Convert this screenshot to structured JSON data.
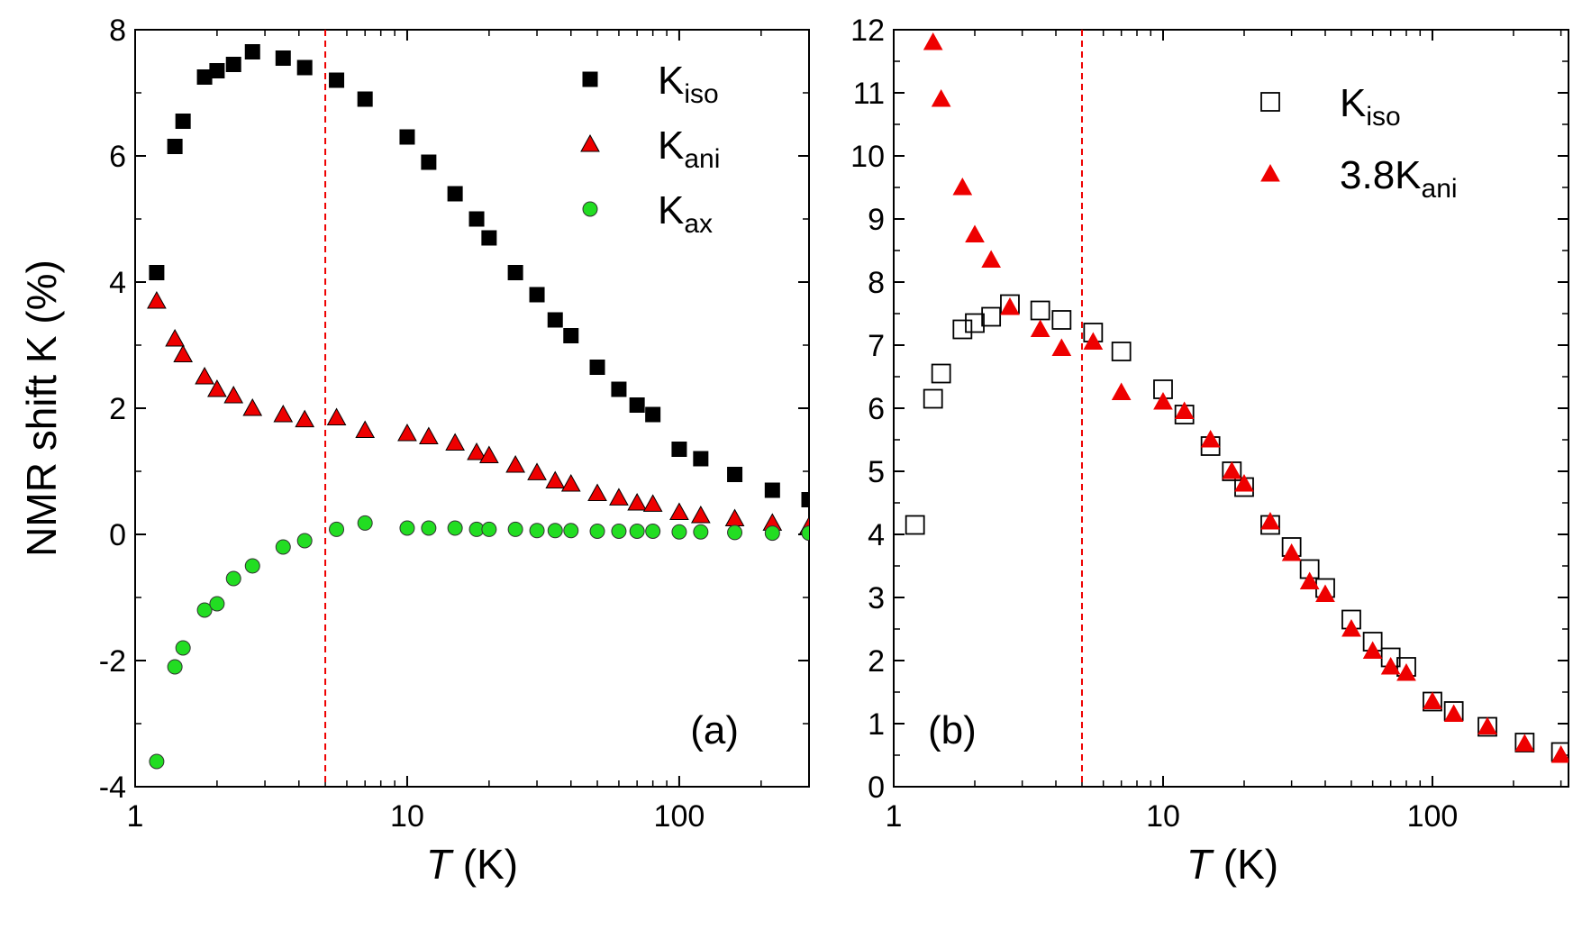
{
  "chart_data": [
    {
      "type": "scatter",
      "panel_label": "(a)",
      "ylabel": "NMR shift K (%)",
      "xlabel_italic": "T",
      "xlabel_rest": " (K)",
      "xscale": "log",
      "xlim": [
        1,
        300
      ],
      "ylim": [
        -4,
        8
      ],
      "yticks": [
        -4,
        -2,
        0,
        2,
        4,
        6,
        8
      ],
      "ytick_labels": [
        "-4",
        "-2",
        "0",
        "2",
        "4",
        "6",
        "8"
      ],
      "xticks": [
        1,
        10,
        100
      ],
      "xtick_labels": [
        "1",
        "10",
        "100"
      ],
      "reference_line_x": 5,
      "legend_position": "top-right",
      "series": [
        {
          "name": "K_iso",
          "label_main": "K",
          "label_sub": "iso",
          "marker": "square",
          "fill": "#000000",
          "stroke": "#000000",
          "points": [
            [
              1.2,
              4.15
            ],
            [
              1.4,
              6.15
            ],
            [
              1.5,
              6.55
            ],
            [
              1.8,
              7.25
            ],
            [
              2.0,
              7.35
            ],
            [
              2.3,
              7.45
            ],
            [
              2.7,
              7.65
            ],
            [
              3.5,
              7.55
            ],
            [
              4.2,
              7.4
            ],
            [
              5.5,
              7.2
            ],
            [
              7.0,
              6.9
            ],
            [
              10,
              6.3
            ],
            [
              12,
              5.9
            ],
            [
              15,
              5.4
            ],
            [
              18,
              5.0
            ],
            [
              20,
              4.7
            ],
            [
              25,
              4.15
            ],
            [
              30,
              3.8
            ],
            [
              35,
              3.4
            ],
            [
              40,
              3.15
            ],
            [
              50,
              2.65
            ],
            [
              60,
              2.3
            ],
            [
              70,
              2.05
            ],
            [
              80,
              1.9
            ],
            [
              100,
              1.35
            ],
            [
              120,
              1.2
            ],
            [
              160,
              0.95
            ],
            [
              220,
              0.7
            ],
            [
              300,
              0.55
            ]
          ]
        },
        {
          "name": "K_ani",
          "label_main": "K",
          "label_sub": "ani",
          "marker": "triangle",
          "fill": "#ee0000",
          "stroke": "#000000",
          "points": [
            [
              1.2,
              3.7
            ],
            [
              1.4,
              3.1
            ],
            [
              1.5,
              2.85
            ],
            [
              1.8,
              2.5
            ],
            [
              2.0,
              2.3
            ],
            [
              2.3,
              2.2
            ],
            [
              2.7,
              2.0
            ],
            [
              3.5,
              1.9
            ],
            [
              4.2,
              1.82
            ],
            [
              5.5,
              1.85
            ],
            [
              7.0,
              1.65
            ],
            [
              10,
              1.6
            ],
            [
              12,
              1.55
            ],
            [
              15,
              1.45
            ],
            [
              18,
              1.3
            ],
            [
              20,
              1.25
            ],
            [
              25,
              1.1
            ],
            [
              30,
              0.98
            ],
            [
              35,
              0.85
            ],
            [
              40,
              0.8
            ],
            [
              50,
              0.65
            ],
            [
              60,
              0.58
            ],
            [
              70,
              0.5
            ],
            [
              80,
              0.48
            ],
            [
              100,
              0.35
            ],
            [
              120,
              0.3
            ],
            [
              160,
              0.25
            ],
            [
              220,
              0.18
            ],
            [
              300,
              0.13
            ]
          ]
        },
        {
          "name": "K_ax",
          "label_main": "K",
          "label_sub": "ax",
          "marker": "circle",
          "fill": "#22dd22",
          "stroke": "#333333",
          "points": [
            [
              1.2,
              -3.6
            ],
            [
              1.4,
              -2.1
            ],
            [
              1.5,
              -1.8
            ],
            [
              1.8,
              -1.2
            ],
            [
              2.0,
              -1.1
            ],
            [
              2.3,
              -0.7
            ],
            [
              2.7,
              -0.5
            ],
            [
              3.5,
              -0.2
            ],
            [
              4.2,
              -0.1
            ],
            [
              5.5,
              0.08
            ],
            [
              7.0,
              0.18
            ],
            [
              10,
              0.1
            ],
            [
              12,
              0.1
            ],
            [
              15,
              0.1
            ],
            [
              18,
              0.08
            ],
            [
              20,
              0.08
            ],
            [
              25,
              0.08
            ],
            [
              30,
              0.06
            ],
            [
              35,
              0.06
            ],
            [
              40,
              0.06
            ],
            [
              50,
              0.05
            ],
            [
              60,
              0.05
            ],
            [
              70,
              0.05
            ],
            [
              80,
              0.05
            ],
            [
              100,
              0.04
            ],
            [
              120,
              0.04
            ],
            [
              160,
              0.03
            ],
            [
              220,
              0.02
            ],
            [
              300,
              0.02
            ]
          ]
        }
      ]
    },
    {
      "type": "scatter",
      "panel_label": "(b)",
      "ylabel": "",
      "xlabel_italic": "T",
      "xlabel_rest": " (K)",
      "xscale": "log",
      "xlim": [
        1,
        320
      ],
      "ylim": [
        0,
        12
      ],
      "yticks": [
        0,
        1,
        2,
        3,
        4,
        5,
        6,
        7,
        8,
        9,
        10,
        11,
        12
      ],
      "ytick_labels": [
        "0",
        "1",
        "2",
        "3",
        "4",
        "5",
        "6",
        "7",
        "8",
        "9",
        "10",
        "11",
        "12"
      ],
      "xticks": [
        1,
        10,
        100
      ],
      "xtick_labels": [
        "1",
        "10",
        "100"
      ],
      "reference_line_x": 5,
      "legend_position": "top-right",
      "series": [
        {
          "name": "K_iso",
          "label_main": "K",
          "label_sub": "iso",
          "marker": "open-square",
          "fill": "none",
          "stroke": "#000000",
          "points": [
            [
              1.2,
              4.15
            ],
            [
              1.4,
              6.15
            ],
            [
              1.5,
              6.55
            ],
            [
              1.8,
              7.25
            ],
            [
              2.0,
              7.35
            ],
            [
              2.3,
              7.45
            ],
            [
              2.7,
              7.65
            ],
            [
              3.5,
              7.55
            ],
            [
              4.2,
              7.4
            ],
            [
              5.5,
              7.2
            ],
            [
              7.0,
              6.9
            ],
            [
              10,
              6.3
            ],
            [
              12,
              5.9
            ],
            [
              15,
              5.4
            ],
            [
              18,
              5.0
            ],
            [
              20,
              4.75
            ],
            [
              25,
              4.15
            ],
            [
              30,
              3.8
            ],
            [
              35,
              3.45
            ],
            [
              40,
              3.15
            ],
            [
              50,
              2.65
            ],
            [
              60,
              2.3
            ],
            [
              70,
              2.05
            ],
            [
              80,
              1.9
            ],
            [
              100,
              1.35
            ],
            [
              120,
              1.2
            ],
            [
              160,
              0.95
            ],
            [
              220,
              0.7
            ],
            [
              300,
              0.55
            ]
          ]
        },
        {
          "name": "3.8K_ani",
          "label_main": "3.8K",
          "label_sub": "ani",
          "marker": "triangle",
          "fill": "#ee0000",
          "stroke": "#ee0000",
          "points": [
            [
              1.4,
              11.8
            ],
            [
              1.5,
              10.9
            ],
            [
              1.8,
              9.5
            ],
            [
              2.0,
              8.75
            ],
            [
              2.3,
              8.35
            ],
            [
              2.7,
              7.6
            ],
            [
              3.5,
              7.25
            ],
            [
              4.2,
              6.95
            ],
            [
              5.5,
              7.05
            ],
            [
              7.0,
              6.25
            ],
            [
              10,
              6.1
            ],
            [
              12,
              5.95
            ],
            [
              15,
              5.5
            ],
            [
              18,
              5.0
            ],
            [
              20,
              4.8
            ],
            [
              25,
              4.2
            ],
            [
              30,
              3.7
            ],
            [
              35,
              3.25
            ],
            [
              40,
              3.05
            ],
            [
              50,
              2.5
            ],
            [
              60,
              2.15
            ],
            [
              70,
              1.9
            ],
            [
              80,
              1.8
            ],
            [
              100,
              1.35
            ],
            [
              120,
              1.15
            ],
            [
              160,
              0.95
            ],
            [
              220,
              0.68
            ],
            [
              300,
              0.5
            ]
          ]
        }
      ]
    }
  ]
}
